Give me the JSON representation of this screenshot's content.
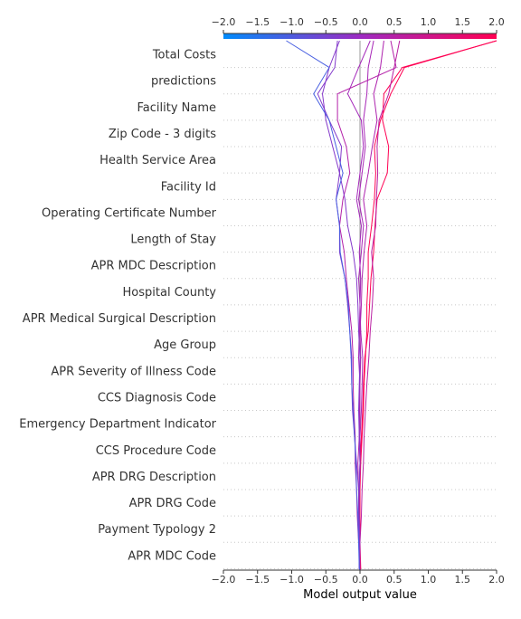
{
  "chart_data": {
    "type": "line",
    "xlabel": "Model output value",
    "xlim": [
      -2.0,
      2.0
    ],
    "xticks": [
      "−2.0",
      "−1.5",
      "−1.0",
      "−0.5",
      "0.0",
      "0.5",
      "1.0",
      "1.5",
      "2.0"
    ],
    "base_value": 0.0,
    "colorbar": {
      "low_color": "#008bfb",
      "mid_color": "#9d2bc2",
      "high_color": "#ff0052"
    },
    "features": [
      "Total Costs",
      "predictions",
      "Facility Name",
      "Zip Code - 3 digits",
      "Health Service Area",
      "Facility Id",
      "Operating Certificate Number",
      "Length of Stay",
      "APR MDC Description",
      "Hospital County",
      "APR Medical Surgical Description",
      "Age Group",
      "APR Severity of Illness Code",
      "CCS Diagnosis Code",
      "Emergency Department Indicator",
      "CCS Procedure Code",
      "APR DRG Description",
      "APR DRG Code",
      "Payment Typology 2",
      "APR MDC Code"
    ],
    "grid": true,
    "series": [
      {
        "values": [
          0.0,
          0.01,
          0.0,
          0.0,
          0.0,
          0.01,
          0.03,
          0.05,
          0.06,
          0.08,
          0.1,
          0.1,
          0.12,
          0.12,
          0.17,
          0.21,
          0.23,
          0.21,
          0.3,
          0.45,
          0.65,
          2.0
        ]
      },
      {
        "values": [
          0.0,
          0.0,
          -0.01,
          -0.01,
          0.0,
          0.0,
          0.02,
          0.04,
          0.05,
          0.07,
          0.12,
          0.14,
          0.16,
          0.2,
          0.22,
          0.25,
          0.4,
          0.42,
          0.33,
          0.35,
          0.62,
          2.0
        ]
      },
      {
        "values": [
          0.0,
          0.0,
          0.0,
          0.02,
          0.03,
          0.05,
          0.06,
          0.08,
          0.1,
          0.13,
          0.15,
          0.18,
          0.2,
          0.17,
          0.23,
          0.24,
          0.26,
          0.25,
          0.28,
          0.42,
          0.5,
          0.58
        ]
      },
      {
        "values": [
          0.0,
          0.0,
          -0.01,
          -0.02,
          -0.02,
          -0.03,
          -0.01,
          -0.01,
          0.0,
          0.01,
          0.0,
          0.02,
          0.03,
          0.06,
          0.1,
          0.05,
          0.12,
          0.18,
          0.25,
          0.2,
          0.3,
          0.35
        ]
      },
      {
        "values": [
          0.0,
          0.0,
          0.0,
          -0.01,
          -0.01,
          0.0,
          0.0,
          0.02,
          0.03,
          0.04,
          0.01,
          0.0,
          -0.02,
          0.02,
          0.05,
          -0.02,
          0.03,
          0.08,
          0.05,
          0.1,
          0.12,
          0.2
        ]
      },
      {
        "values": [
          0.0,
          -0.01,
          -0.01,
          -0.02,
          -0.01,
          0.0,
          -0.01,
          0.0,
          0.0,
          -0.02,
          -0.01,
          0.0,
          0.01,
          -0.01,
          0.02,
          -0.05,
          0.0,
          0.05,
          0.02,
          -0.18,
          -0.02,
          0.15
        ]
      },
      {
        "values": [
          0.0,
          0.0,
          -0.02,
          -0.04,
          -0.05,
          -0.07,
          -0.07,
          -0.09,
          -0.1,
          -0.1,
          -0.12,
          -0.16,
          -0.2,
          -0.23,
          -0.3,
          -0.25,
          -0.15,
          -0.2,
          -0.33,
          -0.33,
          0.53,
          0.45
        ]
      },
      {
        "values": [
          0.0,
          -0.01,
          -0.01,
          -0.02,
          -0.01,
          0.0,
          -0.01,
          -0.02,
          -0.01,
          0.0,
          -0.02,
          -0.03,
          -0.05,
          -0.1,
          -0.18,
          -0.22,
          -0.3,
          -0.4,
          -0.5,
          -0.55,
          -0.45,
          -0.3
        ]
      },
      {
        "values": [
          0.0,
          -0.01,
          -0.01,
          -0.01,
          -0.02,
          -0.05,
          -0.08,
          -0.11,
          -0.12,
          -0.12,
          -0.15,
          -0.18,
          -0.22,
          -0.3,
          -0.3,
          -0.35,
          -0.3,
          -0.27,
          -0.45,
          -0.62,
          -0.37,
          -0.33
        ]
      },
      {
        "values": [
          0.0,
          -0.01,
          -0.02,
          -0.03,
          -0.05,
          -0.06,
          -0.08,
          -0.1,
          -0.12,
          -0.13,
          -0.15,
          -0.17,
          -0.22,
          -0.29,
          -0.3,
          -0.35,
          -0.25,
          -0.35,
          -0.45,
          -0.68,
          -0.45,
          -1.08
        ]
      }
    ]
  }
}
